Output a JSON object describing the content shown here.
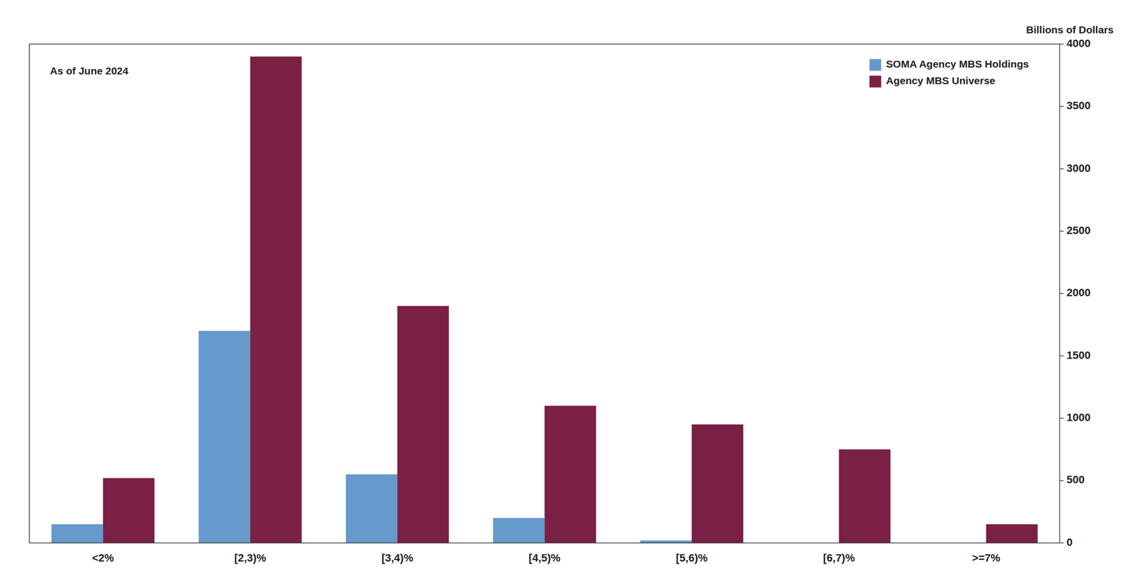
{
  "chart_data": {
    "type": "bar",
    "ylabel": "Billions of Dollars",
    "annotation": "As of June 2024",
    "categories": [
      "<2%",
      "[2,3)%",
      "[3,4)%",
      "[4,5)%",
      "[5,6)%",
      "[6,7)%",
      ">=7%"
    ],
    "series": [
      {
        "name": "SOMA Agency MBS Holdings",
        "color": "#6699cc",
        "values": [
          150,
          1700,
          550,
          200,
          20,
          0,
          0
        ]
      },
      {
        "name": "Agency MBS Universe",
        "color": "#7b2045",
        "values": [
          520,
          3900,
          1900,
          1100,
          950,
          750,
          150
        ]
      }
    ],
    "ylim": [
      0,
      4000
    ],
    "yticks": [
      0,
      500,
      1000,
      1500,
      2000,
      2500,
      3000,
      3500,
      4000
    ],
    "grid": false,
    "legend": "upper right"
  }
}
